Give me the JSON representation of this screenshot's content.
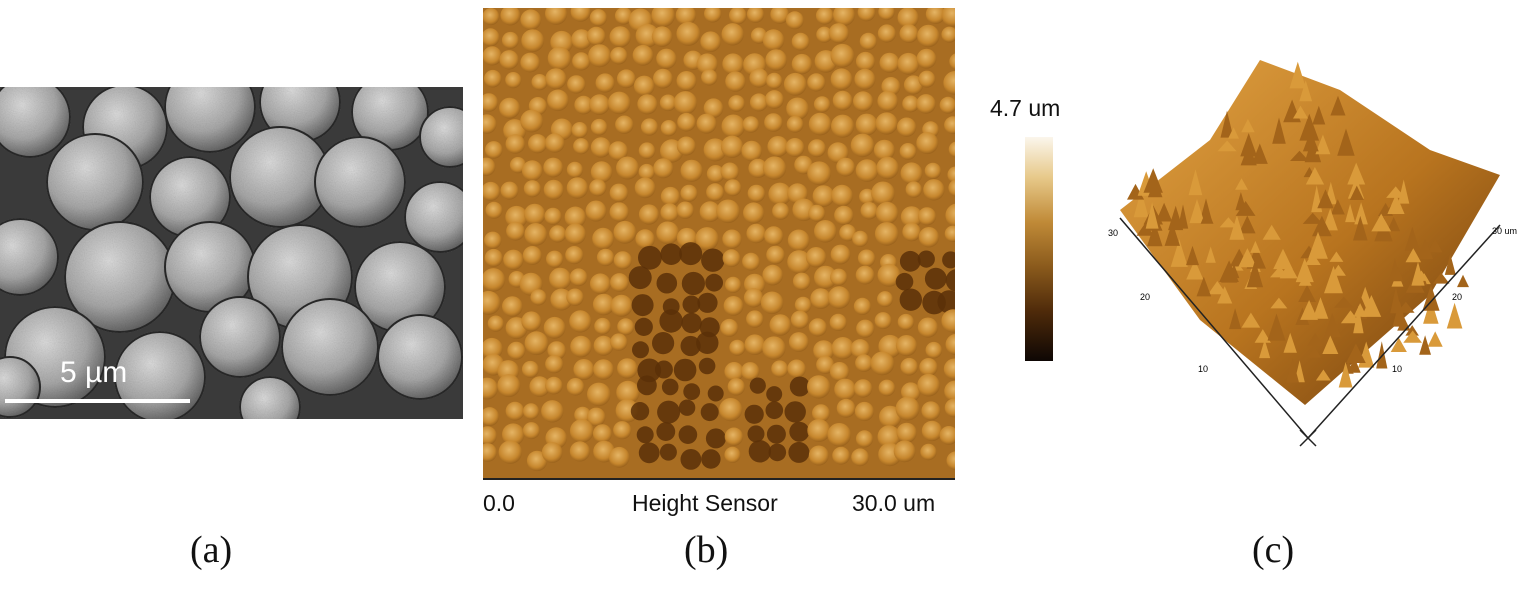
{
  "panel_a": {
    "label": "(a)",
    "scale_bar_text": "5 µm"
  },
  "panel_b": {
    "label": "(b)",
    "axis_min": "0.0",
    "axis_title": "Height Sensor",
    "axis_max": "30.0 um",
    "colorbar_max": "4.7 um"
  },
  "panel_c": {
    "label": "(c)",
    "axis_ticks_right": [
      "10",
      "20",
      "30 um"
    ],
    "axis_ticks_left": [
      "10",
      "20",
      "30"
    ]
  }
}
